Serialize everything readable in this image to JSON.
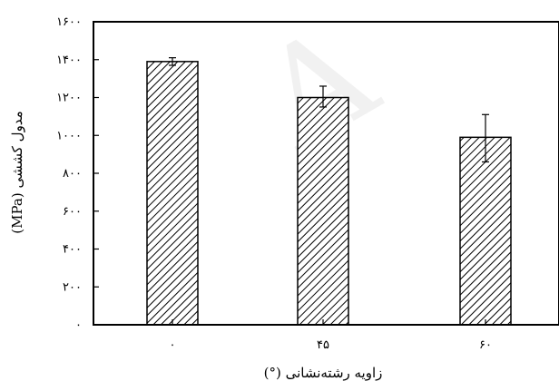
{
  "watermark": "A",
  "chart_data": {
    "type": "bar",
    "categories": [
      "٠",
      "۴۵",
      "۶٠"
    ],
    "values": [
      1390,
      1200,
      990
    ],
    "errors": [
      {
        "low": 1370,
        "high": 1410
      },
      {
        "low": 1150,
        "high": 1260
      },
      {
        "low": 860,
        "high": 1110
      }
    ],
    "yticks": [
      0,
      200,
      400,
      600,
      800,
      1000,
      1200,
      1400,
      1600
    ],
    "ytick_labels": [
      "٠",
      "٢٠٠",
      "۴٠٠",
      "۶٠٠",
      "٨٠٠",
      "١٠٠٠",
      "١٢٠٠",
      "١۴٠٠",
      "١۶٠٠"
    ],
    "ylim": [
      0,
      1600
    ],
    "xlabel": "زاویه رشته‌نشانی (°)",
    "ylabel": "مدول کششی (MPa)",
    "bar_fill": "hatched",
    "bar_color": "#000000",
    "grid": false,
    "legend": "none"
  }
}
